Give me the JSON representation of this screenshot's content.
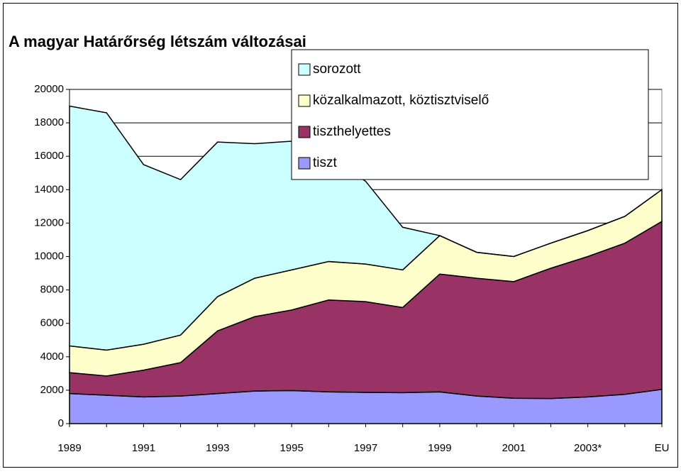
{
  "chart_data": {
    "type": "stacked_area",
    "title": "A magyar Határőrség létszám változásai",
    "categories": [
      "1989",
      null,
      "1991",
      null,
      "1993",
      null,
      "1995",
      null,
      "1997",
      null,
      "1999",
      null,
      "2001",
      null,
      "2003*",
      null,
      "EU"
    ],
    "series": [
      {
        "name": "tiszt",
        "color": "#9999ff",
        "values": [
          1800,
          1700,
          1600,
          1650,
          1800,
          1950,
          1980,
          1900,
          1870,
          1850,
          1900,
          1650,
          1520,
          1500,
          1600,
          1750,
          2050
        ]
      },
      {
        "name": "tiszthelyettes",
        "color": "#993366",
        "values": [
          1250,
          1150,
          1600,
          2000,
          3750,
          4450,
          4820,
          5500,
          5430,
          5100,
          7050,
          7050,
          6980,
          7800,
          8400,
          9050,
          10050
        ]
      },
      {
        "name": "közalkalmazott, köztisztviselő",
        "color": "#ffffcc",
        "values": [
          1600,
          1550,
          1550,
          1650,
          2050,
          2300,
          2400,
          2300,
          2250,
          2250,
          2300,
          1550,
          1500,
          1500,
          1550,
          1600,
          1900
        ]
      },
      {
        "name": "sorozott",
        "color": "#ccffff",
        "values": [
          14350,
          14200,
          10750,
          9300,
          9250,
          8050,
          7700,
          6300,
          4950,
          2550,
          0,
          0,
          0,
          0,
          0,
          0,
          0
        ]
      }
    ],
    "ylim": [
      0,
      20000
    ],
    "yticks": [
      0,
      2000,
      4000,
      6000,
      8000,
      10000,
      12000,
      14000,
      16000,
      18000,
      20000
    ],
    "grid": true,
    "legend": "top-right"
  }
}
